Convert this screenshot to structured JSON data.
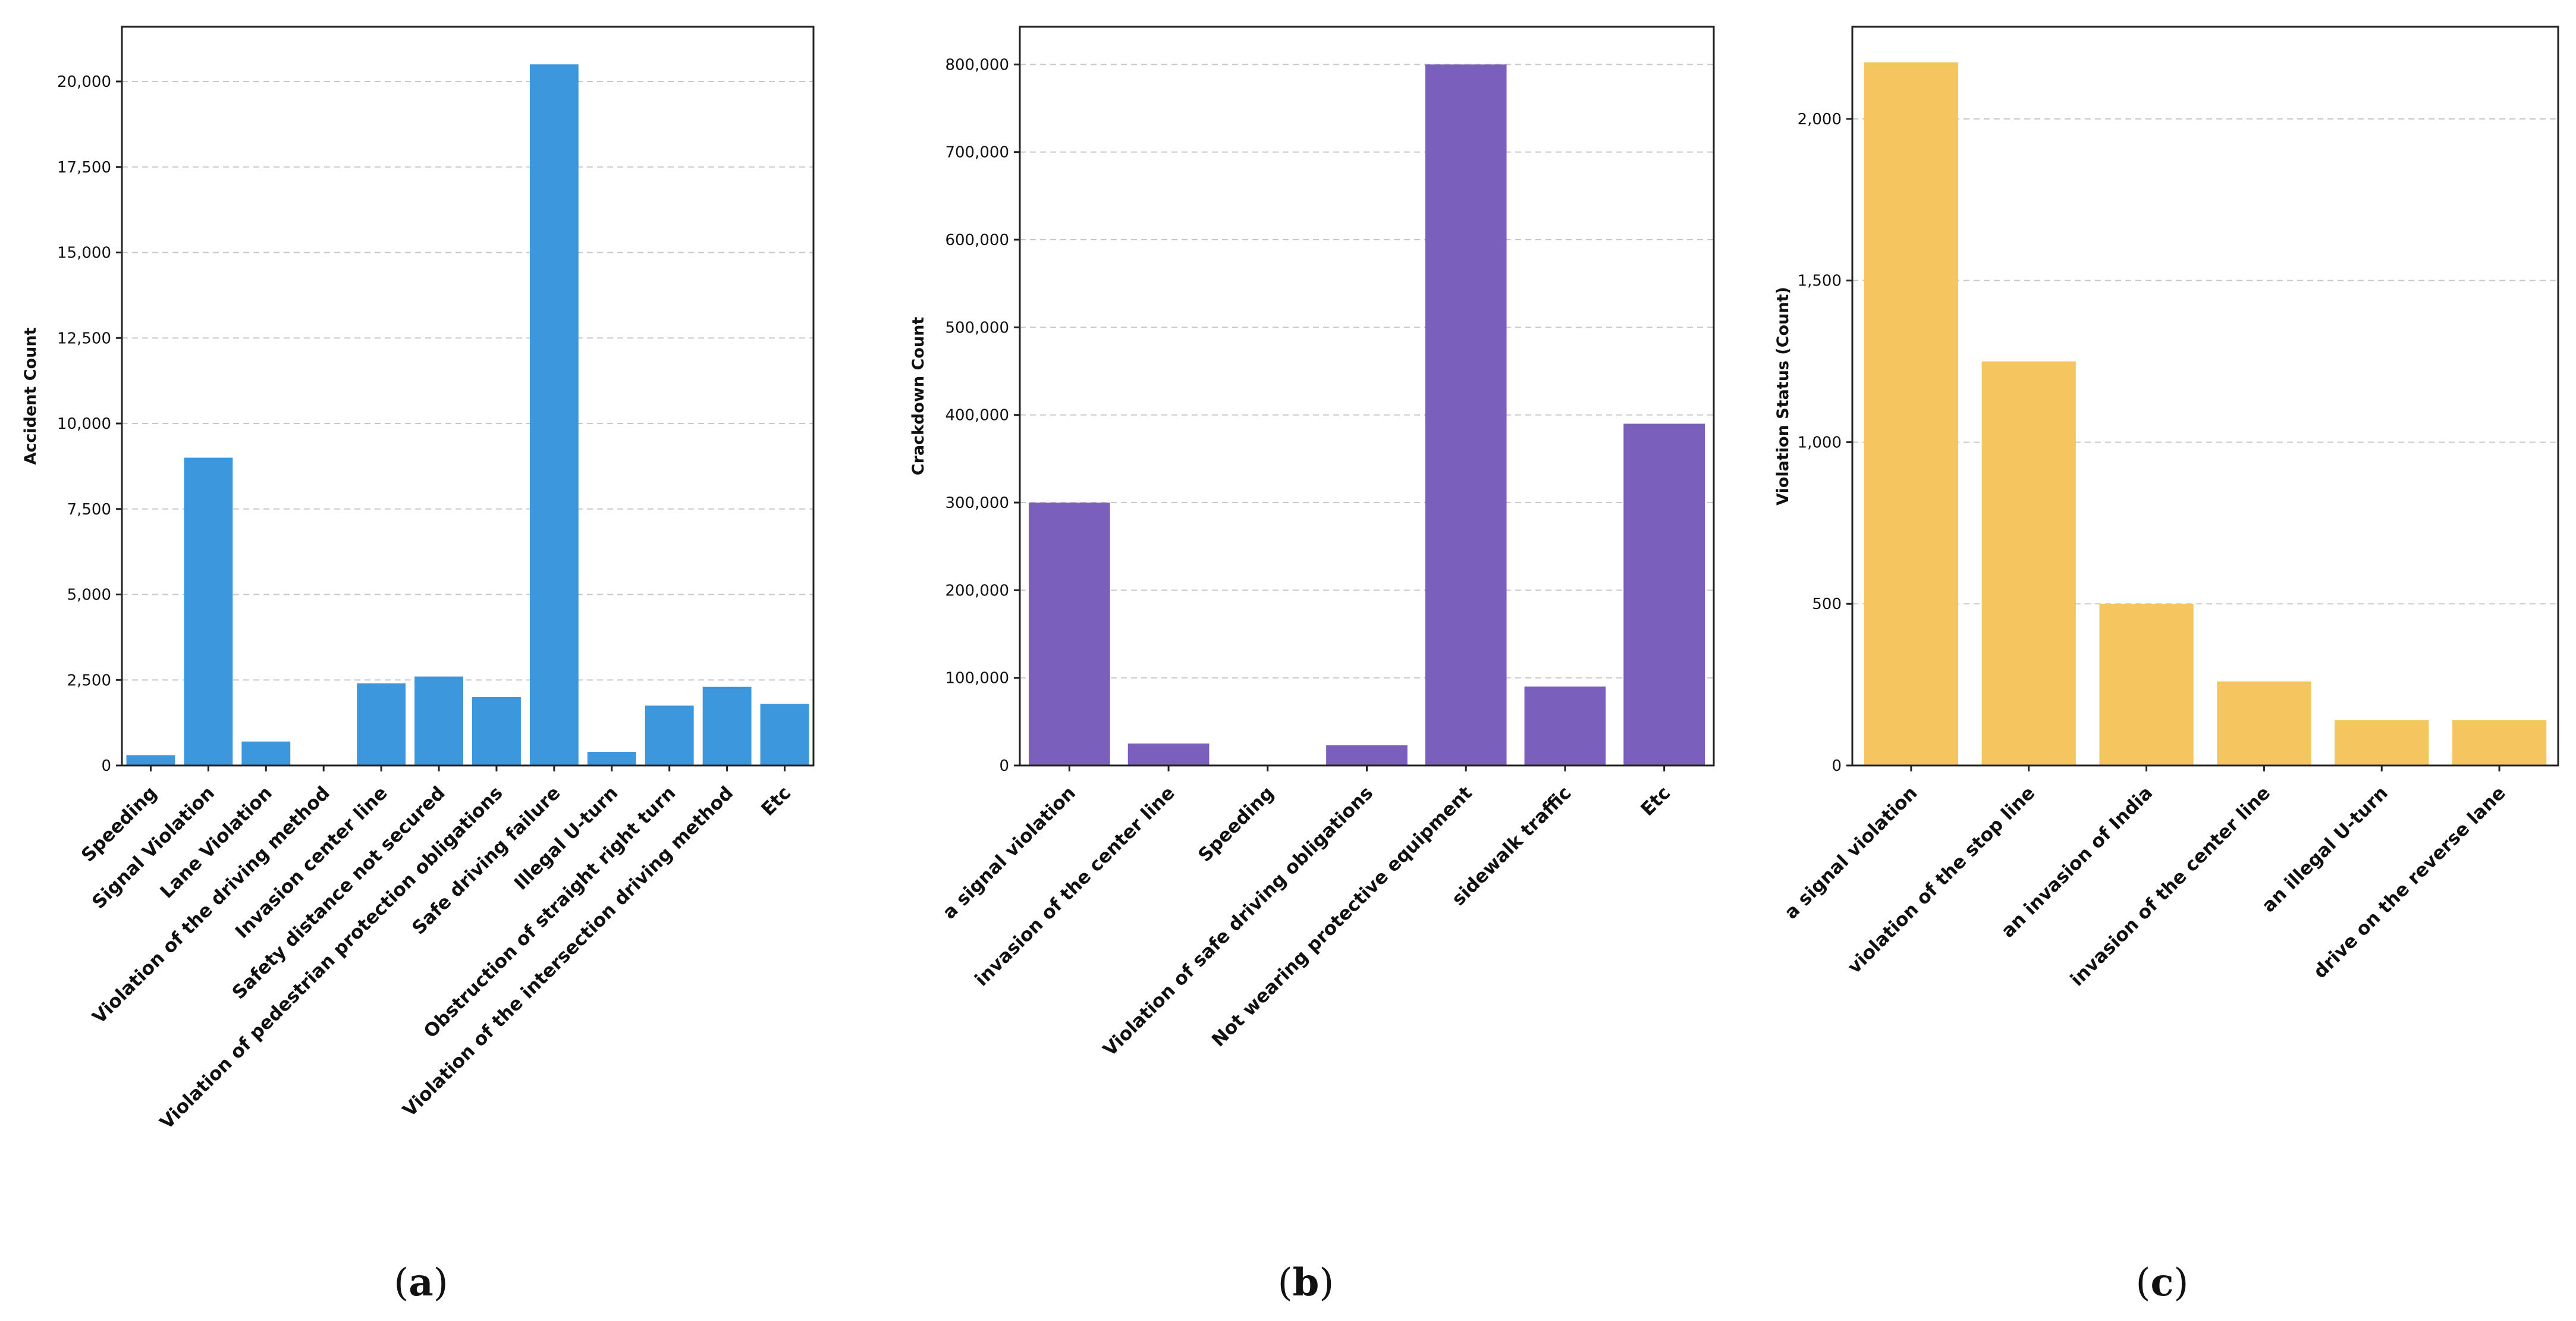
{
  "chart_data": [
    {
      "type": "bar",
      "panel": "a",
      "title": "",
      "xlabel": "",
      "ylabel": "Accident Count",
      "ylim": [
        0,
        21600
      ],
      "yticks": [
        0,
        2500,
        5000,
        7500,
        10000,
        12500,
        15000,
        17500,
        20000
      ],
      "ytick_labels": [
        "0",
        "2,500",
        "5,000",
        "7,500",
        "10,000",
        "12,500",
        "15,000",
        "17,500",
        "20,000"
      ],
      "categories": [
        "Speeding",
        "Signal Violation",
        "Lane Violation",
        "Violation of the driving method",
        "Invasion center line",
        "Safety distance not secured",
        "Violation of pedestrian protection obligations",
        "Safe driving failure",
        "Illegal U-turn",
        "Obstruction of straight right turn",
        "Violation of the intersection driving method",
        "Etc"
      ],
      "values": [
        300,
        9000,
        700,
        0,
        2400,
        2600,
        2000,
        20500,
        400,
        1750,
        2300,
        1800
      ],
      "color": "#3d97dc",
      "grid": true
    },
    {
      "type": "bar",
      "panel": "b",
      "title": "",
      "xlabel": "",
      "ylabel": "Crackdown Count",
      "ylim": [
        0,
        843000
      ],
      "yticks": [
        0,
        100000,
        200000,
        300000,
        400000,
        500000,
        600000,
        700000,
        800000
      ],
      "ytick_labels": [
        "0",
        "100,000",
        "200,000",
        "300,000",
        "400,000",
        "500,000",
        "600,000",
        "700,000",
        "800,000"
      ],
      "categories": [
        "a signal violation",
        "invasion of the center line",
        "Speeding",
        "Violation of safe driving obligations",
        "Not wearing protective equipment",
        "sidewalk traffic",
        "Etc"
      ],
      "values": [
        300000,
        25000,
        0,
        23000,
        800000,
        90000,
        390000
      ],
      "color": "#7b5fbc",
      "grid": true
    },
    {
      "type": "bar",
      "panel": "c",
      "title": "",
      "xlabel": "",
      "ylabel": "Violation Status (Count)",
      "ylim": [
        0,
        2285
      ],
      "yticks": [
        0,
        500,
        1000,
        1500,
        2000
      ],
      "ytick_labels": [
        "0",
        "500",
        "1,000",
        "1,500",
        "2,000"
      ],
      "categories": [
        "a signal violation",
        "violation of the stop line",
        "an invasion of India",
        "invasion of the center line",
        "an illegal U-turn",
        "drive on the reverse lane"
      ],
      "values": [
        2175,
        1250,
        500,
        260,
        140,
        140
      ],
      "color": "#f5c660",
      "grid": true
    }
  ],
  "panel_labels": [
    "a",
    "b",
    "c"
  ]
}
